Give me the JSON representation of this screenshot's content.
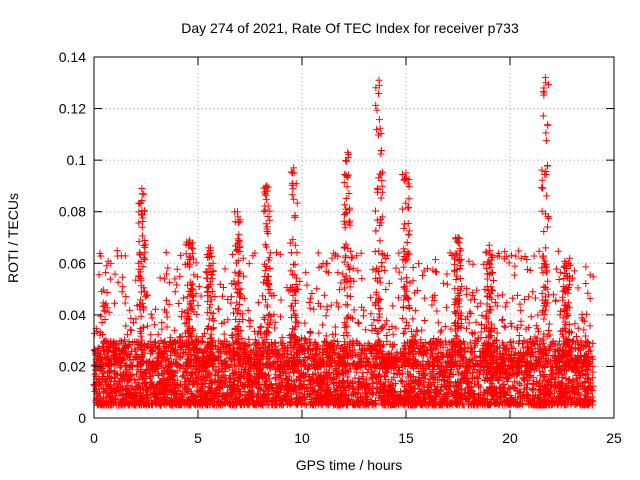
{
  "chart_data": {
    "type": "scatter",
    "title": "Day 274 of 2021, Rate Of TEC Index for receiver p733",
    "xlabel": "GPS time / hours",
    "ylabel": "ROTI / TECUs",
    "xlim": [
      0,
      25
    ],
    "ylim": [
      0,
      0.14
    ],
    "xticks": [
      0,
      5,
      10,
      15,
      20,
      25
    ],
    "yticks": [
      0,
      0.02,
      0.04,
      0.06,
      0.08,
      0.1,
      0.12,
      0.14
    ],
    "xtick_labels": [
      "0",
      "5",
      "10",
      "15",
      "20",
      "25"
    ],
    "ytick_labels": [
      "0",
      "0.02",
      "0.04",
      "0.06",
      "0.08",
      "0.1",
      "0.12",
      "0.14"
    ],
    "grid": true,
    "marker": "+",
    "marker_color": "#ff0000",
    "series": [
      {
        "name": "ROTI",
        "x_range": [
          0,
          24
        ],
        "baseline_range": [
          0.005,
          0.03
        ],
        "peaks": [
          {
            "x": 2.3,
            "y": 0.089
          },
          {
            "x": 4.6,
            "y": 0.069
          },
          {
            "x": 5.6,
            "y": 0.066
          },
          {
            "x": 6.9,
            "y": 0.08
          },
          {
            "x": 8.3,
            "y": 0.09
          },
          {
            "x": 9.6,
            "y": 0.097
          },
          {
            "x": 12.2,
            "y": 0.103
          },
          {
            "x": 13.7,
            "y": 0.131
          },
          {
            "x": 15.0,
            "y": 0.095
          },
          {
            "x": 17.5,
            "y": 0.07
          },
          {
            "x": 19.0,
            "y": 0.067
          },
          {
            "x": 21.7,
            "y": 0.132
          },
          {
            "x": 22.7,
            "y": 0.06
          }
        ]
      }
    ]
  }
}
